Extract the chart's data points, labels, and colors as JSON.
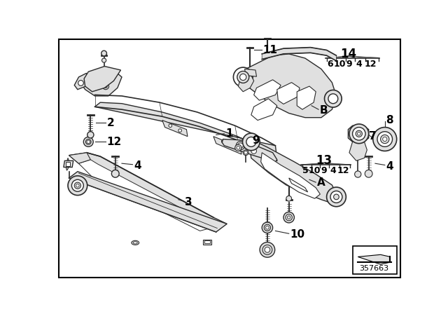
{
  "background_color": "#f5f5f5",
  "border_color": "#000000",
  "diagram_number": "357663",
  "line_color": "#2a2a2a",
  "text_color": "#000000",
  "gray_fill": "#c8c8c8",
  "light_gray": "#e0e0e0",
  "white": "#ffffff"
}
